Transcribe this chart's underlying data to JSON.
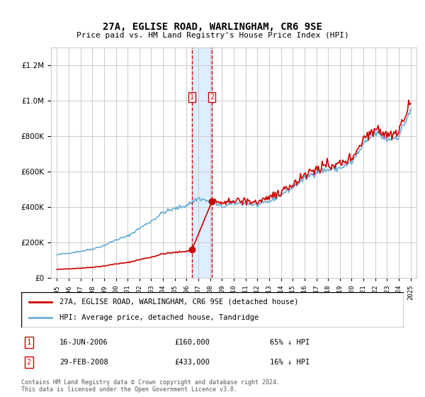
{
  "title": "27A, EGLISE ROAD, WARLINGHAM, CR6 9SE",
  "subtitle": "Price paid vs. HM Land Registry's House Price Index (HPI)",
  "legend_line1": "27A, EGLISE ROAD, WARLINGHAM, CR6 9SE (detached house)",
  "legend_line2": "HPI: Average price, detached house, Tandridge",
  "table_rows": [
    {
      "num": "1",
      "date": "16-JUN-2006",
      "price": "£160,000",
      "hpi": "65% ↓ HPI"
    },
    {
      "num": "2",
      "date": "29-FEB-2008",
      "price": "£433,000",
      "hpi": "16% ↓ HPI"
    }
  ],
  "footnote": "Contains HM Land Registry data © Crown copyright and database right 2024.\nThis data is licensed under the Open Government Licence v3.0.",
  "sale1_year": 2006.46,
  "sale1_price": 160000,
  "sale2_year": 2008.16,
  "sale2_price": 433000,
  "red_color": "#cc0000",
  "blue_color": "#6baed6",
  "shade_color": "#ddeeff",
  "vline_color": "#cc0000",
  "grid_color": "#cccccc",
  "bg_color": "#ffffff",
  "ylim_max": 1300000,
  "xmin": 1994.5,
  "xmax": 2025.5
}
